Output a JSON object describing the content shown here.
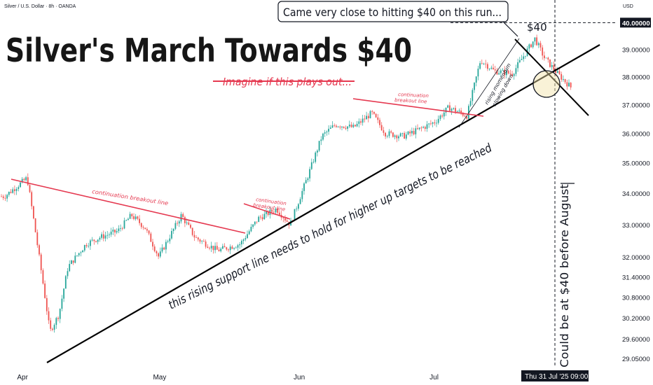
{
  "header": {
    "symbol": "Silver / U.S. Dollar · 8h · OANDA",
    "currency": "USD"
  },
  "title": "Silver's March Towards $40",
  "annotations": {
    "imagine": "Imagine if this plays out...",
    "callout": "Came very close to hitting $40 on this run...",
    "level_label": "$40",
    "support_note": "this rising support line needs to hold for higher up targets to be reached",
    "breakout_1": "continuation breakout line",
    "breakout_2": "continuation breakout line",
    "breakout_3": "continuation breakout line",
    "momentum": "rising momentum slowing down",
    "august_note": "Could be at $40 before August"
  },
  "chart_data": {
    "type": "candlestick",
    "title": "Silver's March Towards $40",
    "xlabel": "",
    "ylabel": "",
    "x_ticks": [
      "Apr",
      "May",
      "Jun",
      "Jul"
    ],
    "y_ticks": [
      "29.05000",
      "29.60000",
      "30.20000",
      "30.80000",
      "31.40000",
      "32.00000",
      "33.00000",
      "34.00000",
      "35.00000",
      "36.00000",
      "37.00000",
      "38.00000",
      "39.00000",
      "40.00000"
    ],
    "y_scale": "log",
    "ylim": [
      28.9,
      40.6
    ],
    "highlight_price": "40.00000",
    "crosshair_date": "Thu 31 Jul '25",
    "crosshair_time": "09:00",
    "anchors": [
      {
        "date": "2025-03-28",
        "close": 33.9
      },
      {
        "date": "2025-04-02",
        "close": 34.5
      },
      {
        "date": "2025-04-04",
        "close": 32.6
      },
      {
        "date": "2025-04-07",
        "close": 29.8
      },
      {
        "date": "2025-04-09",
        "close": 30.3
      },
      {
        "date": "2025-04-11",
        "close": 31.7
      },
      {
        "date": "2025-04-15",
        "close": 32.4
      },
      {
        "date": "2025-04-18",
        "close": 32.6
      },
      {
        "date": "2025-04-22",
        "close": 32.8
      },
      {
        "date": "2025-04-25",
        "close": 33.3
      },
      {
        "date": "2025-04-28",
        "close": 32.9
      },
      {
        "date": "2025-05-01",
        "close": 32.0
      },
      {
        "date": "2025-05-06",
        "close": 33.3
      },
      {
        "date": "2025-05-09",
        "close": 32.6
      },
      {
        "date": "2025-05-14",
        "close": 32.2
      },
      {
        "date": "2025-05-19",
        "close": 32.4
      },
      {
        "date": "2025-05-23",
        "close": 33.2
      },
      {
        "date": "2025-05-27",
        "close": 33.5
      },
      {
        "date": "2025-05-30",
        "close": 33.0
      },
      {
        "date": "2025-06-03",
        "close": 34.6
      },
      {
        "date": "2025-06-06",
        "close": 35.9
      },
      {
        "date": "2025-06-09",
        "close": 36.3
      },
      {
        "date": "2025-06-13",
        "close": 36.2
      },
      {
        "date": "2025-06-17",
        "close": 36.7
      },
      {
        "date": "2025-06-20",
        "close": 36.0
      },
      {
        "date": "2025-06-24",
        "close": 35.9
      },
      {
        "date": "2025-06-27",
        "close": 36.1
      },
      {
        "date": "2025-07-01",
        "close": 36.4
      },
      {
        "date": "2025-07-04",
        "close": 36.9
      },
      {
        "date": "2025-07-08",
        "close": 36.6
      },
      {
        "date": "2025-07-11",
        "close": 38.6
      },
      {
        "date": "2025-07-14",
        "close": 38.2
      },
      {
        "date": "2025-07-18",
        "close": 38.1
      },
      {
        "date": "2025-07-23",
        "close": 39.4
      },
      {
        "date": "2025-07-25",
        "close": 38.7
      },
      {
        "date": "2025-07-28",
        "close": 38.1
      },
      {
        "date": "2025-07-31",
        "close": 37.6
      }
    ],
    "trendlines": [
      {
        "name": "rising support",
        "points": [
          [
            "2025-04-07",
            29.05
          ],
          [
            "2025-08-06",
            39.1
          ]
        ]
      },
      {
        "name": "breakout line 1",
        "points": [
          [
            "2025-03-28",
            34.6
          ],
          [
            "2025-05-28",
            32.8
          ]
        ]
      },
      {
        "name": "breakout line 2",
        "points": [
          [
            "2025-05-28",
            33.7
          ],
          [
            "2025-06-02",
            33.1
          ]
        ]
      },
      {
        "name": "breakout line 3",
        "points": [
          [
            "2025-06-11",
            37.2
          ],
          [
            "2025-07-18",
            36.5
          ]
        ]
      },
      {
        "name": "$40 level",
        "points": [
          [
            "2025-07-13",
            40.0
          ],
          [
            "2025-08-05",
            40.0
          ]
        ]
      }
    ]
  },
  "colors": {
    "up": "#26a69a",
    "down": "#ef5350",
    "annotation_red": "#e53950",
    "line": "#000000",
    "circle_fill": "#f2e3a6"
  }
}
